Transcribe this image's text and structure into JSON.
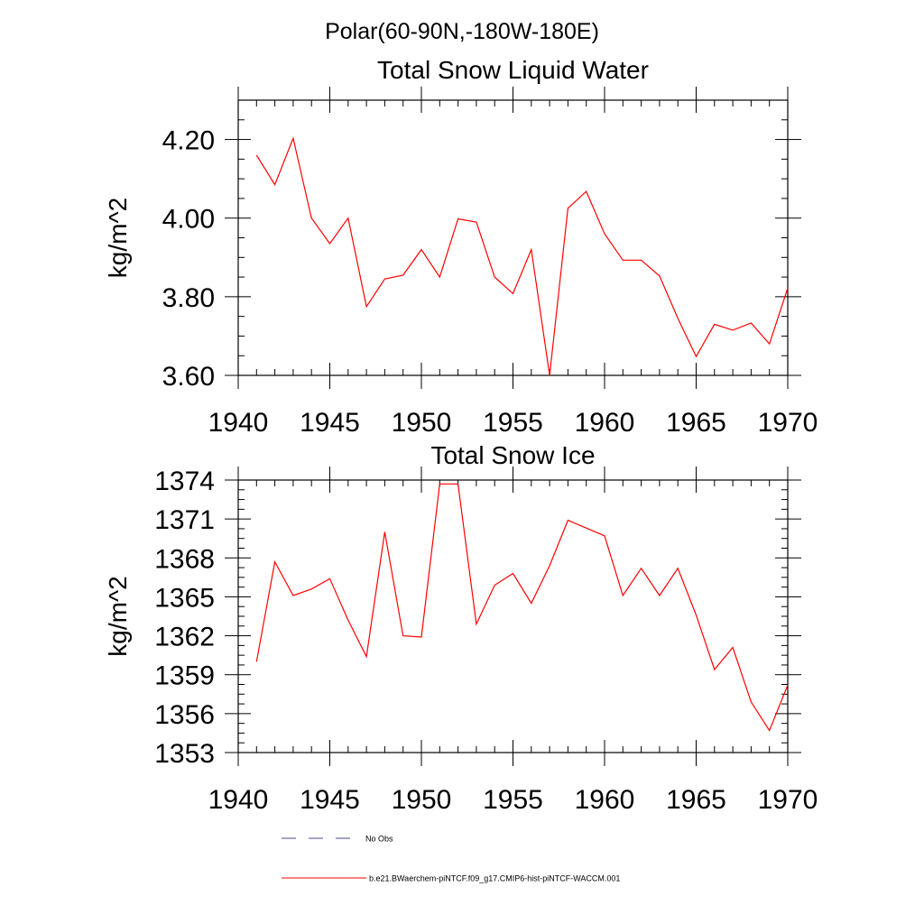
{
  "figure": {
    "title": "Polar(60-90N,-180W-180E)"
  },
  "colors": {
    "model_line": "#ff0000",
    "obs_line": "#4a4a8a",
    "axis": "#000000",
    "background": "#ffffff"
  },
  "legend": {
    "placement": "bottom",
    "entries": [
      {
        "label": "No Obs",
        "style": "dashed"
      },
      {
        "label": "b.e21.BWaerchem-piNTCF.f09_g17.CMIP6-hist-piNTCF-WACCM.001",
        "style": "solid"
      }
    ]
  },
  "chart_data": [
    {
      "type": "line",
      "title": "Total Snow Liquid Water",
      "xlabel": "",
      "ylabel": "kg/m^2",
      "xlim": [
        1940,
        1970
      ],
      "ylim": [
        3.6,
        4.3
      ],
      "xticks": [
        "1940",
        "1945",
        "1950",
        "1955",
        "1960",
        "1965",
        "1970"
      ],
      "yticks": [
        "3.60",
        "3.80",
        "4.00",
        "4.20"
      ],
      "grid": false,
      "x": [
        1941,
        1942,
        1943,
        1944,
        1945,
        1946,
        1947,
        1948,
        1949,
        1950,
        1951,
        1952,
        1953,
        1954,
        1955,
        1956,
        1957,
        1958,
        1959,
        1960,
        1961,
        1962,
        1963,
        1964,
        1965,
        1966,
        1967,
        1968,
        1969,
        1970
      ],
      "series": [
        {
          "name": "b.e21.BWaerchem-piNTCF.f09_g17.CMIP6-hist-piNTCF-WACCM.001",
          "values": [
            4.16,
            4.085,
            4.203,
            4.0,
            3.935,
            4.0,
            3.775,
            3.845,
            3.855,
            3.92,
            3.85,
            3.998,
            3.99,
            3.85,
            3.808,
            3.92,
            3.6,
            4.025,
            4.068,
            3.96,
            3.893,
            3.893,
            3.853,
            3.745,
            3.648,
            3.73,
            3.715,
            3.733,
            3.68,
            3.822
          ]
        }
      ]
    },
    {
      "type": "line",
      "title": "Total Snow Ice",
      "xlabel": "",
      "ylabel": "kg/m^2",
      "xlim": [
        1940,
        1970
      ],
      "ylim": [
        1353,
        1374
      ],
      "xticks": [
        "1940",
        "1945",
        "1950",
        "1955",
        "1960",
        "1965",
        "1970"
      ],
      "yticks": [
        "1353",
        "1356",
        "1359",
        "1362",
        "1365",
        "1368",
        "1371",
        "1374"
      ],
      "grid": false,
      "x": [
        1941,
        1942,
        1943,
        1944,
        1945,
        1946,
        1947,
        1948,
        1949,
        1950,
        1951,
        1952,
        1953,
        1954,
        1955,
        1956,
        1957,
        1958,
        1959,
        1960,
        1961,
        1962,
        1963,
        1964,
        1965,
        1966,
        1967,
        1968,
        1969,
        1970
      ],
      "series": [
        {
          "name": "b.e21.BWaerchem-piNTCF.f09_g17.CMIP6-hist-piNTCF-WACCM.001",
          "values": [
            1360.0,
            1367.7,
            1365.1,
            1365.6,
            1366.4,
            1363.2,
            1360.4,
            1370.0,
            1362.0,
            1361.9,
            1373.7,
            1373.7,
            1362.9,
            1365.9,
            1366.8,
            1364.5,
            1367.4,
            1370.9,
            1370.3,
            1369.7,
            1365.1,
            1367.2,
            1365.1,
            1367.2,
            1363.6,
            1359.4,
            1361.1,
            1356.9,
            1354.7,
            1358.2
          ]
        }
      ]
    }
  ]
}
